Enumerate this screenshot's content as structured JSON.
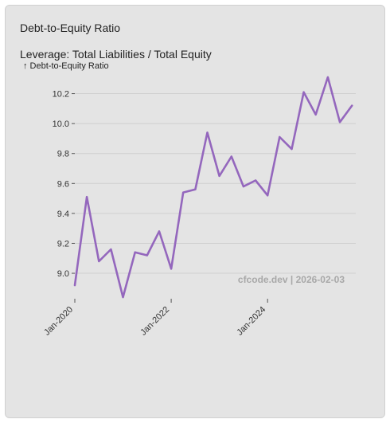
{
  "card": {
    "title": "Debt-to-Equity Ratio"
  },
  "chart_data": {
    "type": "line",
    "title": "Leverage: Total Liabilities / Total Equity",
    "ylabel": "↑ Debt-to-Equity Ratio",
    "xlabel": "",
    "watermark": "cfcode.dev | 2026-02-03",
    "x_ticks": [
      {
        "label": "Jan-2020",
        "x": 2020.0
      },
      {
        "label": "Jan-2022",
        "x": 2022.0
      },
      {
        "label": "Jan-2024",
        "x": 2024.0
      }
    ],
    "y_ticks": [
      9.0,
      9.2,
      9.4,
      9.6,
      9.8,
      10.0,
      10.2
    ],
    "xlim": [
      2020.0,
      2025.83
    ],
    "ylim": [
      8.83,
      10.32
    ],
    "grid": true,
    "series": [
      {
        "color": "#9467bd",
        "x": [
          2020.0,
          2020.25,
          2020.5,
          2020.75,
          2021.0,
          2021.25,
          2021.5,
          2021.75,
          2022.0,
          2022.25,
          2022.5,
          2022.75,
          2023.0,
          2023.25,
          2023.5,
          2023.75,
          2024.0,
          2024.25,
          2024.5,
          2024.75,
          2025.0,
          2025.25,
          2025.5,
          2025.75
        ],
        "y": [
          8.92,
          9.51,
          9.08,
          9.16,
          8.84,
          9.14,
          9.12,
          9.28,
          9.03,
          9.54,
          9.56,
          9.94,
          9.65,
          9.78,
          9.58,
          9.62,
          9.52,
          9.91,
          9.83,
          10.21,
          10.06,
          10.31,
          10.01,
          10.12
        ]
      }
    ]
  }
}
